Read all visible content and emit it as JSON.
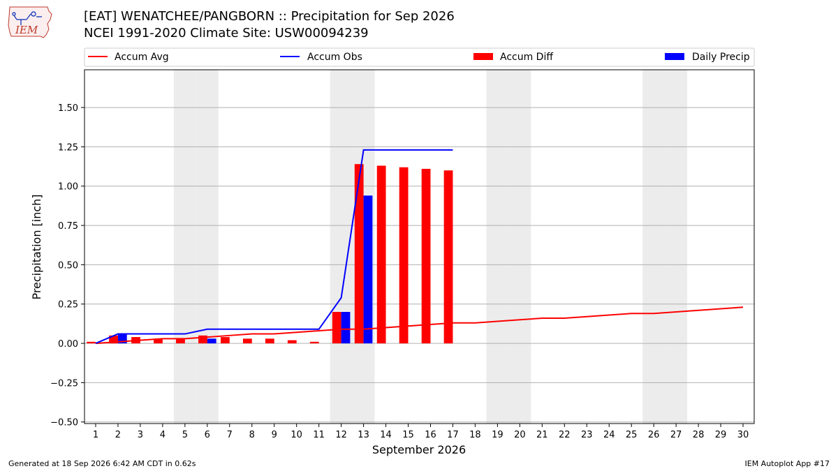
{
  "header": {
    "logo_text": "IEM",
    "title": "[EAT] WENATCHEE/PANGBORN :: Precipitation for Sep 2026",
    "subtitle": "NCEI 1991-2020 Climate Site: USW00094239"
  },
  "footer": {
    "generated": "Generated at 18 Sep 2026 6:42 AM CDT in 0.62s",
    "app": "IEM Autoplot App #17"
  },
  "colors": {
    "avg": "#ff0000",
    "obs": "#0000ff",
    "diff": "#ff0000",
    "daily": "#0000ff",
    "weekend_shade": "#ececec",
    "grid": "#b0b0b0"
  },
  "chart_data": {
    "type": "bar",
    "title": "[EAT] WENATCHEE/PANGBORN :: Precipitation for Sep 2026",
    "subtitle": "NCEI 1991-2020 Climate Site: USW00094239",
    "xlabel": "September 2026",
    "ylabel": "Precipitation [inch]",
    "x": [
      1,
      2,
      3,
      4,
      5,
      6,
      7,
      8,
      9,
      10,
      11,
      12,
      13,
      14,
      15,
      16,
      17,
      18,
      19,
      20,
      21,
      22,
      23,
      24,
      25,
      26,
      27,
      28,
      29,
      30
    ],
    "xlim": [
      0.5,
      30.5
    ],
    "ylim": [
      -0.51,
      1.74
    ],
    "yticks": [
      -0.5,
      -0.25,
      0.0,
      0.25,
      0.5,
      0.75,
      1.0,
      1.25,
      1.5
    ],
    "ytick_labels": [
      "−0.50",
      "−0.25",
      "0.00",
      "0.25",
      "0.50",
      "0.75",
      "1.00",
      "1.25",
      "1.50"
    ],
    "grid": true,
    "legend_position": "top (above plot)",
    "weekend_shading_days": [
      5,
      6,
      12,
      13,
      19,
      20,
      26,
      27
    ],
    "series": [
      {
        "name": "Accum Avg",
        "kind": "line",
        "x": [
          1,
          2,
          3,
          4,
          5,
          6,
          7,
          8,
          9,
          10,
          11,
          12,
          13,
          14,
          15,
          16,
          17,
          18,
          19,
          20,
          21,
          22,
          23,
          24,
          25,
          26,
          27,
          28,
          29,
          30
        ],
        "values": [
          0.0,
          0.01,
          0.02,
          0.03,
          0.03,
          0.04,
          0.05,
          0.06,
          0.06,
          0.07,
          0.08,
          0.09,
          0.09,
          0.1,
          0.11,
          0.12,
          0.13,
          0.13,
          0.14,
          0.15,
          0.16,
          0.16,
          0.17,
          0.18,
          0.19,
          0.19,
          0.2,
          0.21,
          0.22,
          0.23
        ]
      },
      {
        "name": "Accum Obs",
        "kind": "line",
        "x": [
          1,
          2,
          3,
          4,
          5,
          6,
          7,
          8,
          9,
          10,
          11,
          12,
          13,
          14,
          15,
          16,
          17
        ],
        "values": [
          0.0,
          0.06,
          0.06,
          0.06,
          0.06,
          0.09,
          0.09,
          0.09,
          0.09,
          0.09,
          0.09,
          0.29,
          1.23,
          1.23,
          1.23,
          1.23,
          1.23
        ]
      },
      {
        "name": "Accum Diff",
        "kind": "bar",
        "x": [
          1,
          2,
          3,
          4,
          5,
          6,
          7,
          8,
          9,
          10,
          11,
          12,
          13,
          14,
          15,
          16,
          17
        ],
        "values": [
          0.01,
          0.05,
          0.04,
          0.03,
          0.03,
          0.05,
          0.04,
          0.03,
          0.03,
          0.02,
          0.01,
          0.2,
          1.14,
          1.13,
          1.12,
          1.11,
          1.1
        ]
      },
      {
        "name": "Daily Precip",
        "kind": "bar",
        "x": [
          1,
          2,
          3,
          4,
          5,
          6,
          7,
          8,
          9,
          10,
          11,
          12,
          13,
          14,
          15,
          16,
          17
        ],
        "values": [
          0.0,
          0.06,
          0.0,
          0.0,
          0.0,
          0.03,
          0.0,
          0.0,
          0.0,
          0.0,
          0.0,
          0.2,
          0.94,
          0.0,
          0.0,
          0.0,
          0.0
        ]
      }
    ]
  }
}
